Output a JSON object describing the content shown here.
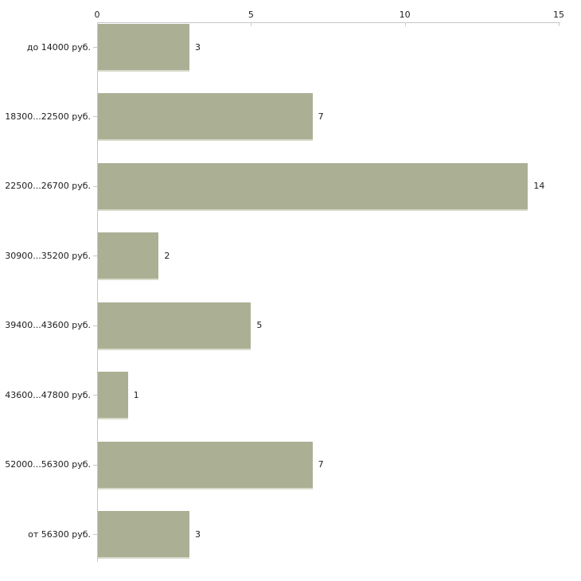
{
  "chart_data": {
    "type": "bar",
    "orientation": "horizontal",
    "title": "",
    "xlabel": "",
    "ylabel": "",
    "categories": [
      "до 14000 руб.",
      "18300...22500 руб.",
      "22500...26700 руб.",
      "30900...35200 руб.",
      "39400...43600 руб.",
      "43600...47800 руб.",
      "52000...56300 руб.",
      "от 56300 руб."
    ],
    "values": [
      3,
      7,
      14,
      2,
      5,
      1,
      7,
      3
    ],
    "xlim": [
      0,
      15
    ],
    "x_ticks": [
      0,
      5,
      10,
      15
    ],
    "grid": false,
    "legend": "none",
    "axis_position": "top",
    "colors": {
      "bar_fill": "#abb095",
      "bar_shadow": "#d8dbca",
      "axis_line": "#c6c6c6",
      "x_tick_mark": "#cdd0ba",
      "category_tick_mark": "#c9c9c2",
      "text": "#1c1c1c",
      "background": "#ffffff"
    }
  }
}
